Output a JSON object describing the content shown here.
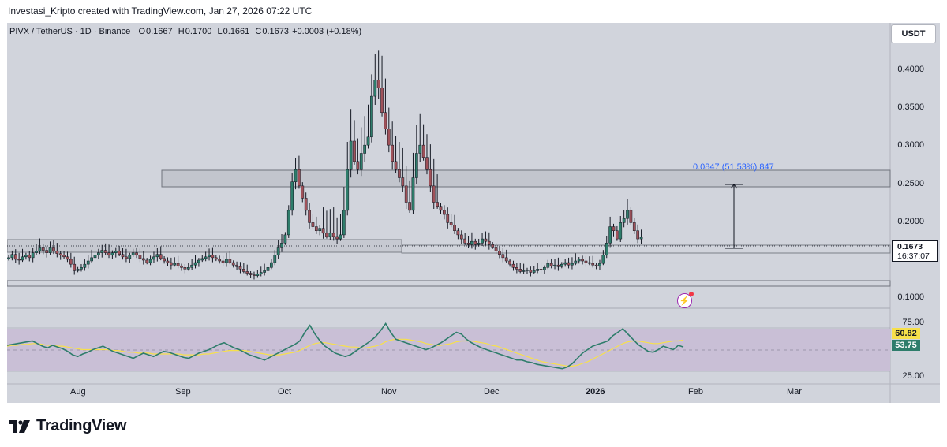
{
  "credit": "Investasi_Kripto created with TradingView.com, Jan 27, 2026 07:22 UTC",
  "legend": {
    "symbol": "PIVX / TetherUS · 1D · Binance",
    "o_label": "O",
    "o": "0.1667",
    "h_label": "H",
    "h": "0.1700",
    "l_label": "L",
    "l": "0.1661",
    "c_label": "C",
    "c": "0.1673",
    "change": "+0.0003 (+0.18%)"
  },
  "unit_badge": "USDT",
  "price_axis": [
    "0.4000",
    "0.3500",
    "0.3000",
    "0.2500",
    "0.2000",
    "0.1000"
  ],
  "rsi_axis": [
    "75.00",
    "25.00"
  ],
  "current_price": {
    "value": "0.1673",
    "countdown": "16:37:07"
  },
  "rsi_tags": {
    "rsi": "53.75",
    "ma": "60.82",
    "rsi_color": "#2e7d6b",
    "ma_color": "#f7e04a"
  },
  "time_axis": [
    "Aug",
    "Sep",
    "Oct",
    "Nov",
    "Dec",
    "2026",
    "Feb",
    "Mar"
  ],
  "measure_label": "0.0847 (51.53%) 847",
  "brand": "TradingView",
  "icons": {
    "brand_logo": "tradingview-logo-icon",
    "alert": "flash-alert-icon"
  },
  "colors": {
    "up": "#2e7d6b",
    "down": "#a0525a",
    "panel": "#d1d4dc",
    "rsi_band": "#c9bfd6",
    "measure": "#2962ff"
  },
  "chart_data": {
    "type": "candlestick",
    "price_range": [
      0.08,
      0.43
    ],
    "closes": [
      0.142,
      0.146,
      0.14,
      0.139,
      0.143,
      0.145,
      0.142,
      0.148,
      0.15,
      0.155,
      0.151,
      0.148,
      0.155,
      0.15,
      0.147,
      0.145,
      0.143,
      0.14,
      0.134,
      0.126,
      0.128,
      0.13,
      0.134,
      0.138,
      0.142,
      0.145,
      0.148,
      0.151,
      0.148,
      0.145,
      0.148,
      0.15,
      0.146,
      0.143,
      0.141,
      0.145,
      0.148,
      0.145,
      0.141,
      0.139,
      0.136,
      0.14,
      0.143,
      0.146,
      0.141,
      0.138,
      0.136,
      0.133,
      0.135,
      0.132,
      0.13,
      0.128,
      0.13,
      0.133,
      0.136,
      0.139,
      0.141,
      0.143,
      0.145,
      0.142,
      0.14,
      0.138,
      0.136,
      0.14,
      0.136,
      0.133,
      0.131,
      0.128,
      0.125,
      0.123,
      0.121,
      0.12,
      0.122,
      0.124,
      0.126,
      0.13,
      0.136,
      0.145,
      0.155,
      0.16,
      0.17,
      0.2,
      0.235,
      0.25,
      0.23,
      0.215,
      0.2,
      0.185,
      0.18,
      0.175,
      0.178,
      0.172,
      0.168,
      0.172,
      0.168,
      0.165,
      0.17,
      0.2,
      0.25,
      0.285,
      0.26,
      0.25,
      0.27,
      0.28,
      0.29,
      0.34,
      0.36,
      0.35,
      0.32,
      0.3,
      0.28,
      0.26,
      0.25,
      0.24,
      0.23,
      0.21,
      0.2,
      0.24,
      0.27,
      0.28,
      0.265,
      0.25,
      0.23,
      0.21,
      0.205,
      0.2,
      0.195,
      0.185,
      0.182,
      0.175,
      0.17,
      0.165,
      0.16,
      0.158,
      0.162,
      0.158,
      0.16,
      0.165,
      0.162,
      0.158,
      0.155,
      0.15,
      0.146,
      0.142,
      0.138,
      0.134,
      0.13,
      0.128,
      0.125,
      0.126,
      0.127,
      0.124,
      0.126,
      0.128,
      0.127,
      0.13,
      0.135,
      0.132,
      0.133,
      0.131,
      0.134,
      0.136,
      0.133,
      0.135,
      0.138,
      0.14,
      0.138,
      0.136,
      0.135,
      0.133,
      0.132,
      0.135,
      0.145,
      0.16,
      0.18,
      0.175,
      0.165,
      0.185,
      0.19,
      0.2,
      0.185,
      0.175,
      0.165,
      0.167
    ],
    "rsi": [
      55,
      56,
      57,
      58,
      59,
      60,
      57,
      54,
      52,
      55,
      53,
      51,
      48,
      44,
      42,
      45,
      47,
      50,
      52,
      54,
      51,
      48,
      46,
      44,
      42,
      40,
      43,
      46,
      44,
      42,
      45,
      48,
      47,
      45,
      43,
      41,
      40,
      43,
      46,
      48,
      50,
      53,
      56,
      58,
      55,
      52,
      50,
      47,
      44,
      42,
      40,
      38,
      41,
      44,
      47,
      50,
      53,
      56,
      60,
      70,
      78,
      68,
      60,
      54,
      50,
      46,
      44,
      42,
      44,
      48,
      52,
      56,
      60,
      65,
      72,
      80,
      70,
      62,
      60,
      58,
      56,
      54,
      52,
      50,
      52,
      55,
      58,
      62,
      66,
      70,
      68,
      62,
      58,
      55,
      52,
      50,
      48,
      46,
      44,
      42,
      40,
      38,
      38,
      36,
      35,
      33,
      32,
      31,
      30,
      29,
      28,
      30,
      34,
      40,
      46,
      50,
      54,
      56,
      58,
      60,
      66,
      70,
      74,
      68,
      62,
      56,
      52,
      48,
      47,
      50,
      54,
      52,
      50,
      55,
      53
    ],
    "rsi_ma": [
      54,
      55,
      55,
      56,
      56,
      57,
      57,
      56,
      55,
      55,
      54,
      54,
      53,
      52,
      51,
      50,
      50,
      50,
      50,
      50,
      50,
      49,
      49,
      48,
      47,
      47,
      46,
      46,
      46,
      45,
      45,
      45,
      45,
      45,
      45,
      44,
      44,
      44,
      44,
      45,
      45,
      46,
      47,
      48,
      49,
      49,
      49,
      49,
      48,
      47,
      46,
      45,
      44,
      44,
      44,
      45,
      46,
      47,
      49,
      52,
      55,
      57,
      58,
      58,
      57,
      56,
      55,
      54,
      53,
      53,
      52,
      52,
      53,
      54,
      56,
      59,
      61,
      62,
      62,
      62,
      61,
      60,
      59,
      57,
      56,
      55,
      55,
      56,
      57,
      59,
      60,
      60,
      60,
      59,
      58,
      57,
      55,
      54,
      52,
      50,
      48,
      46,
      44,
      42,
      40,
      38,
      36,
      35,
      34,
      33,
      32,
      31,
      31,
      32,
      34,
      36,
      39,
      42,
      45,
      48,
      51,
      54,
      57,
      59,
      60,
      60,
      59,
      58,
      57,
      57,
      58,
      59,
      60,
      60,
      61
    ]
  }
}
